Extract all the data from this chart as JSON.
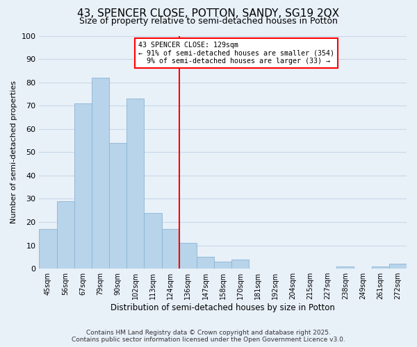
{
  "title": "43, SPENCER CLOSE, POTTON, SANDY, SG19 2QX",
  "subtitle": "Size of property relative to semi-detached houses in Potton",
  "xlabel": "Distribution of semi-detached houses by size in Potton",
  "ylabel": "Number of semi-detached properties",
  "bar_labels": [
    "45sqm",
    "56sqm",
    "67sqm",
    "79sqm",
    "90sqm",
    "102sqm",
    "113sqm",
    "124sqm",
    "136sqm",
    "147sqm",
    "158sqm",
    "170sqm",
    "181sqm",
    "192sqm",
    "204sqm",
    "215sqm",
    "227sqm",
    "238sqm",
    "249sqm",
    "261sqm",
    "272sqm"
  ],
  "bar_values": [
    17,
    29,
    71,
    82,
    54,
    73,
    24,
    17,
    11,
    5,
    3,
    4,
    0,
    0,
    0,
    0,
    0,
    1,
    0,
    1,
    2
  ],
  "bar_color": "#b8d4ea",
  "bar_edge_color": "#8ab4d4",
  "ylim": [
    0,
    100
  ],
  "yticks": [
    0,
    10,
    20,
    30,
    40,
    50,
    60,
    70,
    80,
    90,
    100
  ],
  "property_label": "43 SPENCER CLOSE: 129sqm",
  "pct_smaller": 91,
  "n_smaller": 354,
  "pct_larger": 9,
  "n_larger": 33,
  "vline_x_index": 7.5,
  "grid_color": "#c8d8e8",
  "background_color": "#e8f0f8",
  "footer_line1": "Contains HM Land Registry data © Crown copyright and database right 2025.",
  "footer_line2": "Contains public sector information licensed under the Open Government Licence v3.0."
}
